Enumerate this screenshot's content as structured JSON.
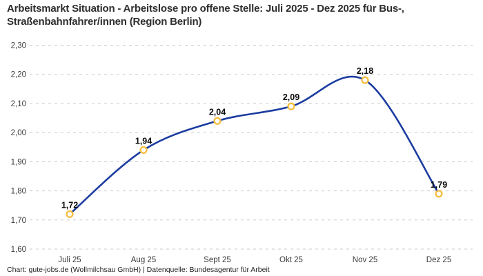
{
  "header": {
    "title": "Arbeitsmarkt Situation - Arbeitslose pro offene Stelle: Juli 2025 - Dez 2025 für Bus-, Straßenbahnfahrer/innen (Region Berlin)"
  },
  "footer": {
    "credit": "Chart: gute-jobs.de (Wollmilchsau GmbH) | Datenquelle: Bundesagentur für Arbeit"
  },
  "chart_data": {
    "type": "line",
    "title": "Arbeitsmarkt Situation - Arbeitslose pro offene Stelle: Juli 2025 - Dez 2025 für Bus-, Straßenbahnfahrer/innen (Region Berlin)",
    "categories": [
      "Juli 25",
      "Aug 25",
      "Sept 25",
      "Okt 25",
      "Nov 25",
      "Dez 25"
    ],
    "values": [
      1.72,
      1.94,
      2.04,
      2.09,
      2.18,
      1.79
    ],
    "value_labels": [
      "1,72",
      "1,94",
      "2,04",
      "2,09",
      "2,18",
      "1,79"
    ],
    "xlabel": "",
    "ylabel": "",
    "ylim": [
      1.6,
      2.3
    ],
    "ytick_labels": [
      "1,60",
      "1,70",
      "1,80",
      "1,90",
      "2,00",
      "2,10",
      "2,20",
      "2,30"
    ],
    "grid": "horizontal-dashed",
    "legend": "none",
    "curve": "smooth",
    "colors": {
      "line": "#1c3ca0",
      "marker_ring": "#f6bf43",
      "marker_fill": "#ffffff",
      "grid": "#c9c9c9",
      "tick_text": "#3a3a3a",
      "point_label_text": "#0a0a0a",
      "title_text": "#2e2e2e",
      "background": "#ffffff"
    }
  }
}
